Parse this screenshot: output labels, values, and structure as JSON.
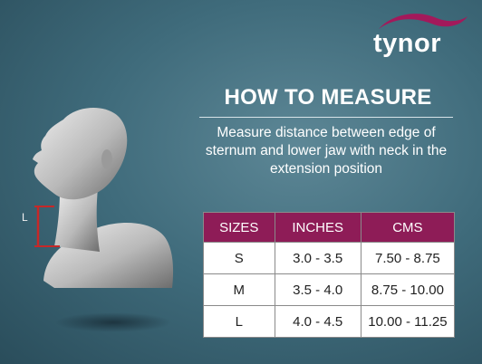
{
  "brand": {
    "logo_text": "tynor",
    "swoosh_color": "#a3195b"
  },
  "heading": {
    "title": "HOW TO MEASURE"
  },
  "description": {
    "lines": [
      "Measure distance between edge of",
      "sternum and lower jaw with neck in the",
      "extension position"
    ]
  },
  "figure": {
    "measure_label": "L",
    "marker_color": "#c62828"
  },
  "size_table": {
    "headers": [
      "SIZES",
      "INCHES",
      "CMS"
    ],
    "header_color": "#8e1c57",
    "rows": [
      [
        "S",
        "3.0 - 3.5",
        "7.50 - 8.75"
      ],
      [
        "M",
        "3.5 - 4.0",
        "8.75 - 10.00"
      ],
      [
        "L",
        "4.0 - 4.5",
        "10.00 - 11.25"
      ]
    ]
  }
}
